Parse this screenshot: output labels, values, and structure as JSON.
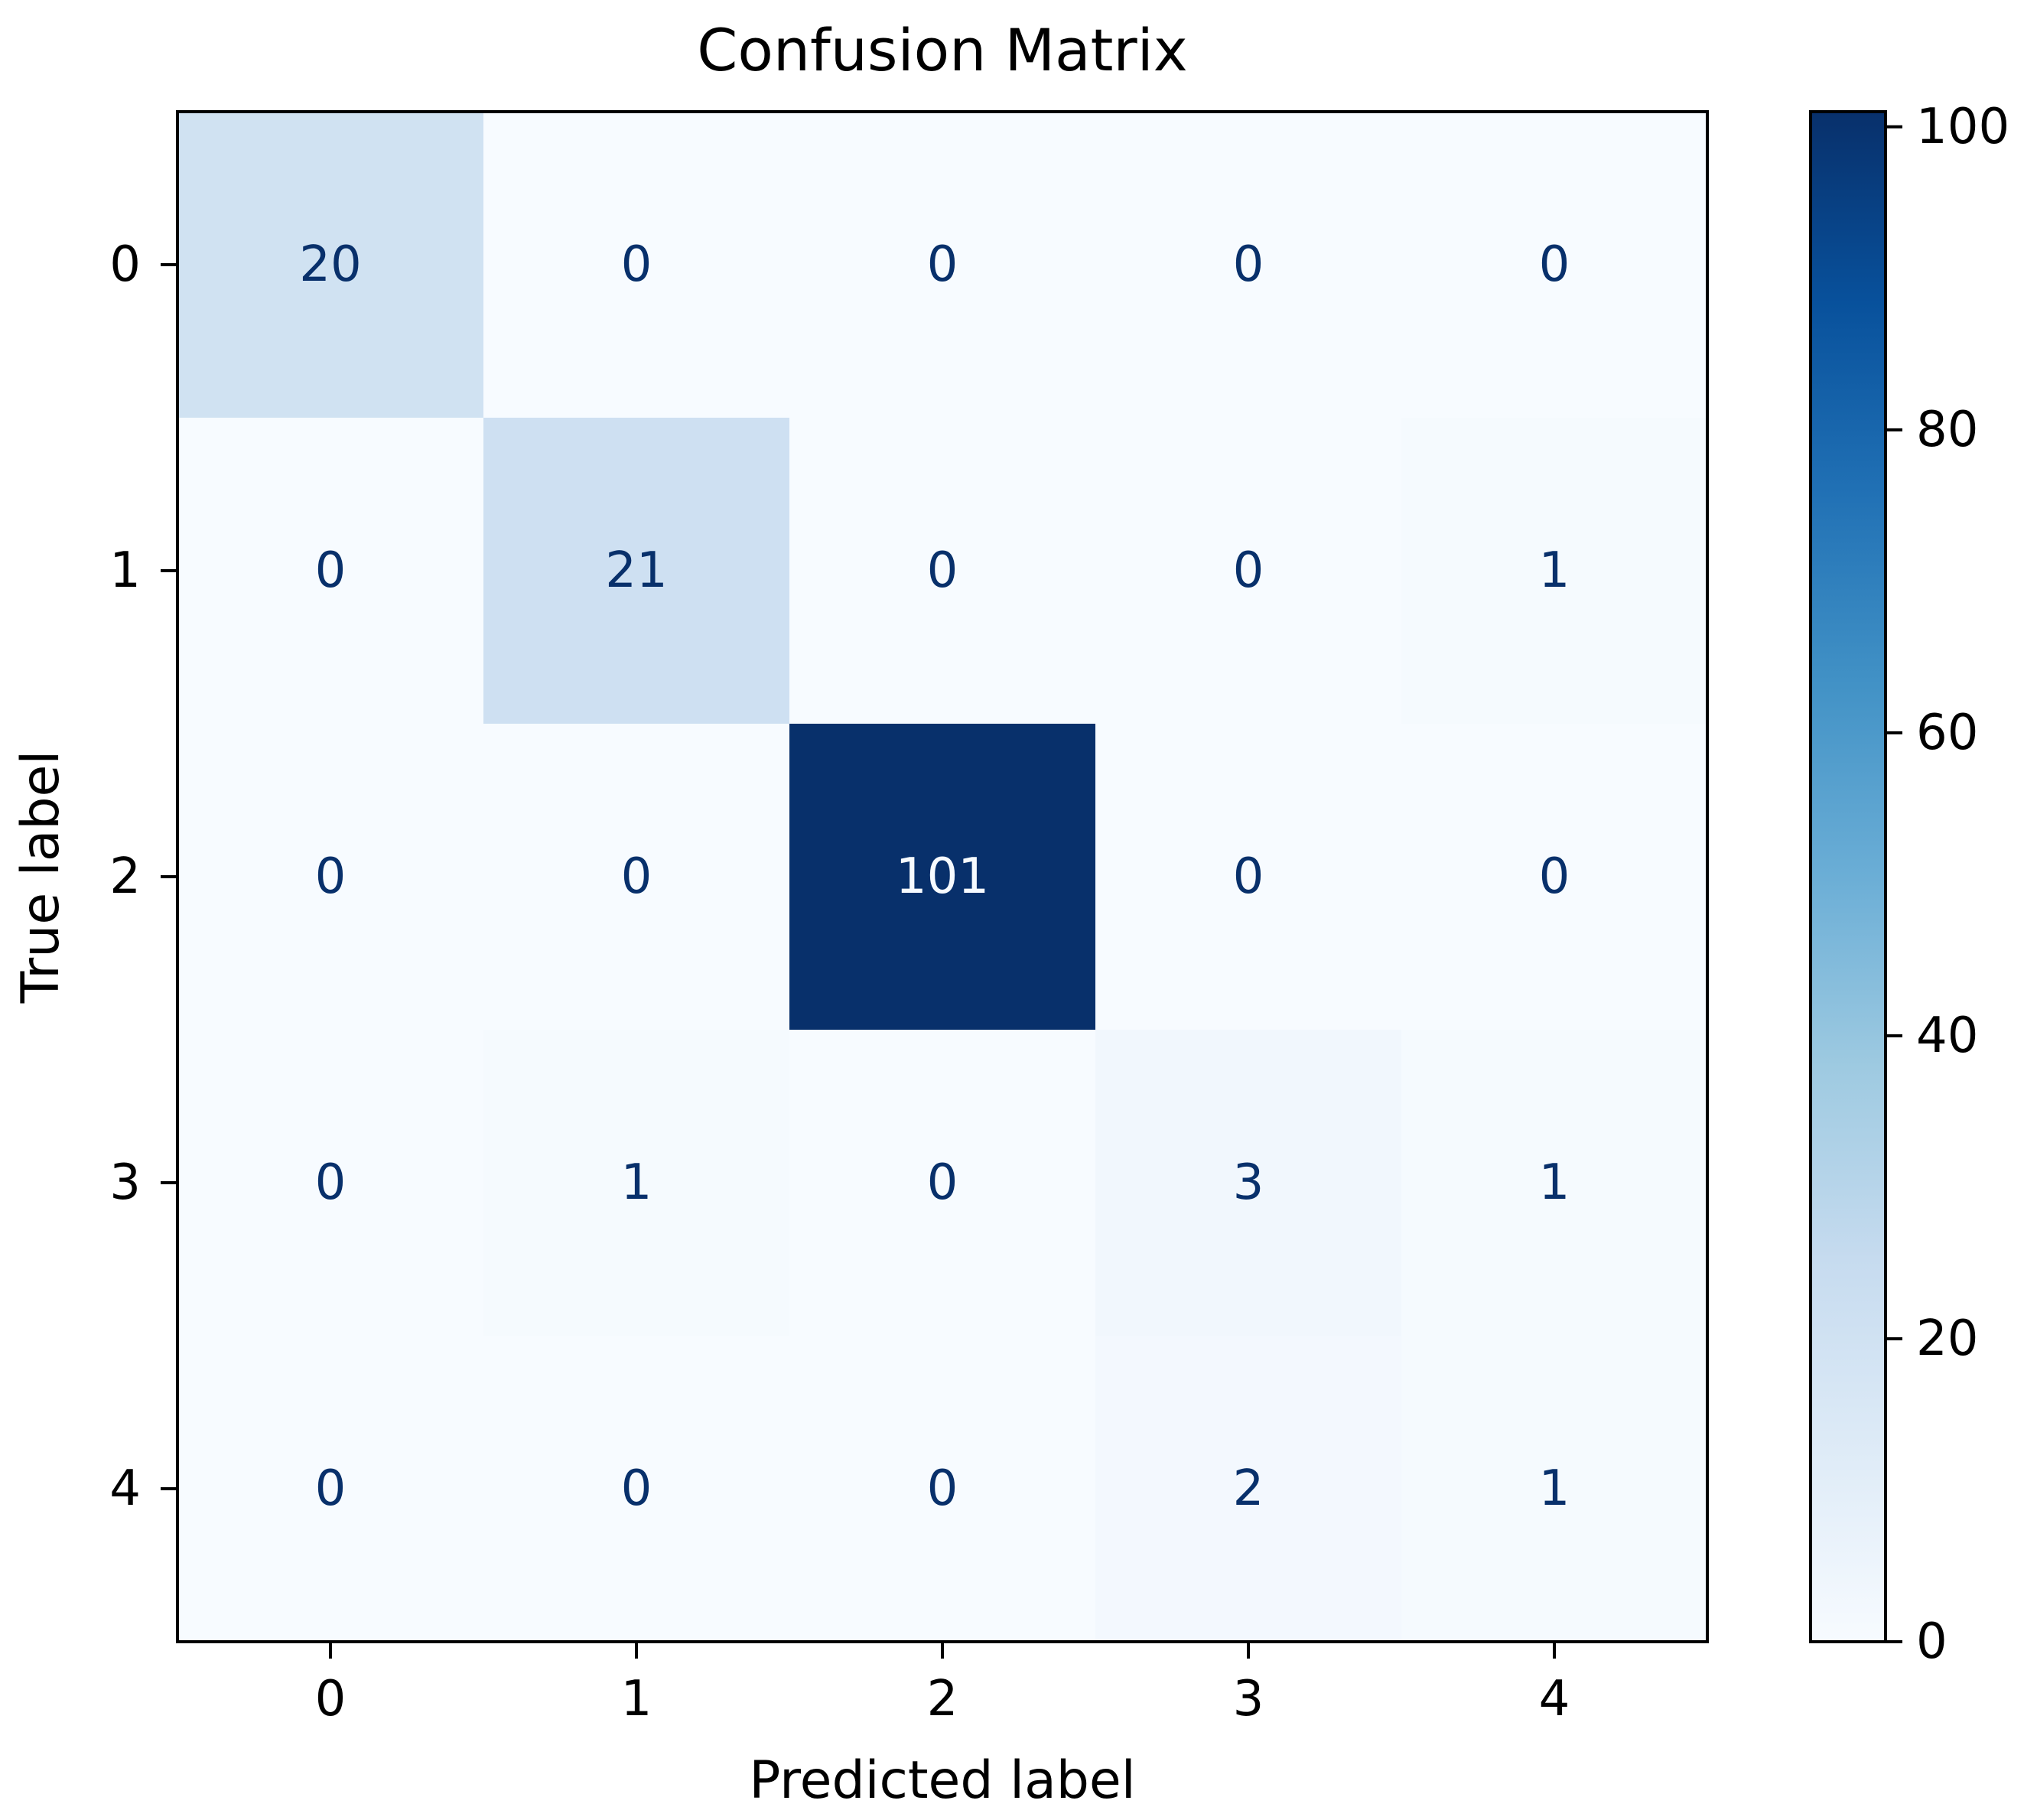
{
  "chart_data": {
    "type": "heatmap",
    "title": "Confusion Matrix",
    "xlabel": "Predicted label",
    "ylabel": "True label",
    "x_categories": [
      "0",
      "1",
      "2",
      "3",
      "4"
    ],
    "y_categories": [
      "0",
      "1",
      "2",
      "3",
      "4"
    ],
    "values": [
      [
        20,
        0,
        0,
        0,
        0
      ],
      [
        0,
        21,
        0,
        0,
        1
      ],
      [
        0,
        0,
        101,
        0,
        0
      ],
      [
        0,
        1,
        0,
        3,
        1
      ],
      [
        0,
        0,
        0,
        2,
        1
      ]
    ],
    "colormap": "Blues",
    "value_range": [
      0,
      101
    ],
    "colorbar": {
      "ticks": [
        0,
        20,
        40,
        60,
        80,
        100
      ],
      "tick_labels": [
        "0",
        "20",
        "40",
        "60",
        "80",
        "100"
      ]
    },
    "grid": false
  },
  "colors": {
    "blues_scale": [
      "#f7fbff",
      "#deebf7",
      "#c6dbef",
      "#9ecae1",
      "#6baed6",
      "#4292c6",
      "#2171b5",
      "#08519c",
      "#08306b"
    ],
    "text_light": "#f7fbff",
    "text_dark": "#08306b"
  }
}
